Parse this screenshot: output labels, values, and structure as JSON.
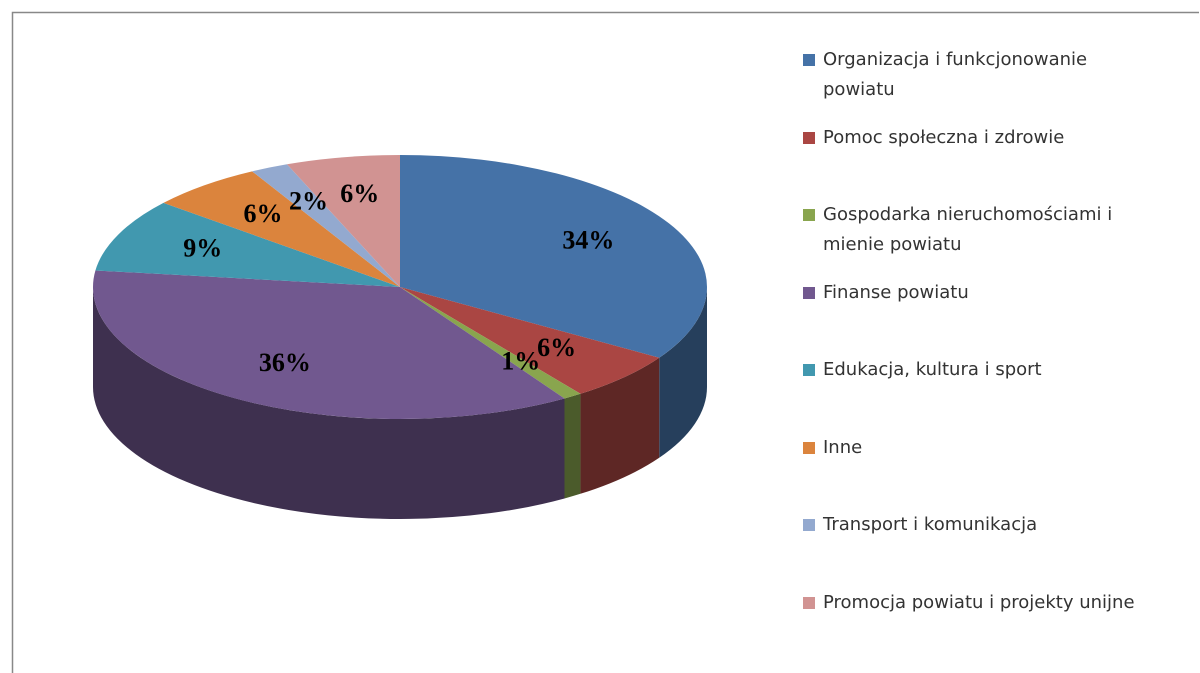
{
  "chart_data": {
    "type": "pie",
    "categories": [
      "Organizacja i funkcjonowanie powiatu",
      "Pomoc społeczna i zdrowie",
      "Gospodarka nieruchomościami i mienie powiatu",
      "Finanse powiatu",
      "Edukacja, kultura i sport",
      "Inne",
      "Transport i komunikacja",
      "Promocja powiatu i projekty unijne"
    ],
    "values": [
      34,
      6,
      1,
      36,
      9,
      6,
      2,
      6
    ],
    "value_labels": [
      "34%",
      "6%",
      "1%",
      "36%",
      "9%",
      "6%",
      "2%",
      "6%"
    ],
    "colors": [
      "#4572a7",
      "#aa4643",
      "#89a54e",
      "#71588f",
      "#4198af",
      "#db843d",
      "#93a9cf",
      "#d19392"
    ],
    "legend": "right"
  }
}
